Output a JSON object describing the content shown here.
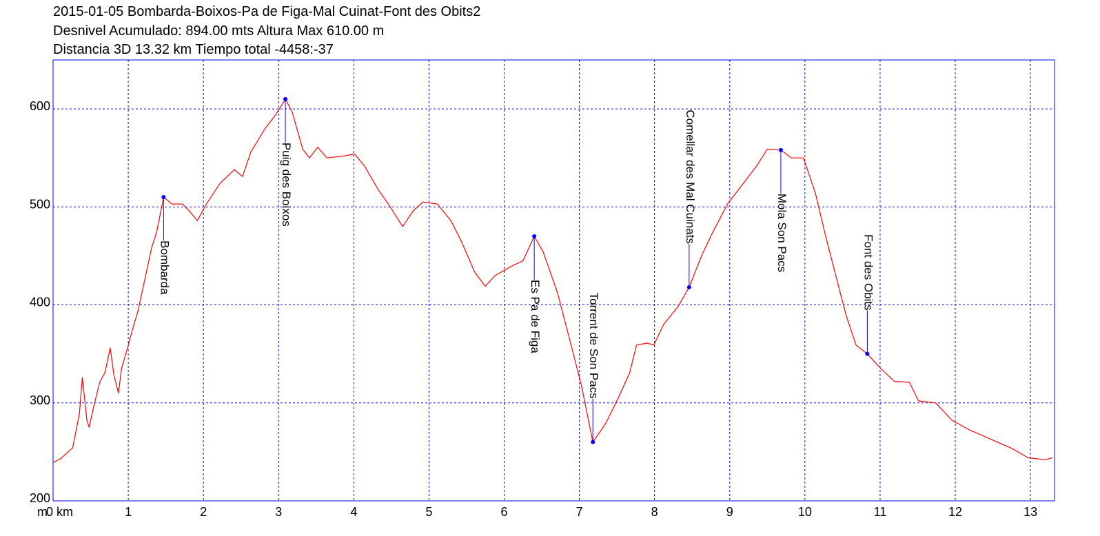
{
  "chart_data": {
    "type": "line",
    "title": [
      "2015-01-05 Bombarda-Boixos-Pa de Figa-Mal Cuinat-Font des Obits2",
      "Desnivel Acumulado: 894.00 mts  Altura Max 610.00 m",
      "Distancia 3D 13.32 km  Tiempo total -4458:-37"
    ],
    "y_label": "m",
    "xlim": [
      0,
      13.32
    ],
    "ylim": [
      200,
      650
    ],
    "xticks": [
      {
        "value": 0,
        "label": "0 km"
      },
      1,
      2,
      3,
      4,
      5,
      6,
      7,
      8,
      9,
      10,
      11,
      12,
      13
    ],
    "yticks": [
      200,
      300,
      400,
      500,
      600
    ],
    "grid": true,
    "series": [
      {
        "name": "Altura",
        "color": "#ff0000",
        "x": [
          0,
          0.1,
          0.2,
          0.26,
          0.35,
          0.39,
          0.45,
          0.48,
          0.54,
          0.62,
          0.69,
          0.76,
          0.81,
          0.87,
          0.91,
          0.99,
          1.05,
          1.13,
          1.22,
          1.31,
          1.38,
          1.47,
          1.58,
          1.72,
          1.81,
          1.92,
          2.04,
          2.22,
          2.41,
          2.52,
          2.63,
          2.82,
          2.96,
          3.09,
          3.18,
          3.32,
          3.41,
          3.52,
          3.64,
          3.87,
          4.01,
          4.14,
          4.33,
          4.46,
          4.65,
          4.79,
          4.92,
          5.11,
          5.29,
          5.43,
          5.61,
          5.75,
          5.88,
          6.11,
          6.25,
          6.4,
          6.52,
          6.71,
          6.89,
          7.03,
          7.18,
          7.35,
          7.53,
          7.67,
          7.76,
          7.9,
          7.99,
          8.12,
          8.31,
          8.46,
          8.63,
          8.76,
          8.97,
          9.18,
          9.36,
          9.5,
          9.68,
          9.82,
          9.98,
          10.14,
          10.27,
          10.41,
          10.55,
          10.68,
          10.83,
          11.01,
          11.19,
          11.39,
          11.51,
          11.74,
          11.96,
          12.2,
          12.47,
          12.74,
          12.97,
          13.2,
          13.29
        ],
        "values": [
          239,
          243,
          250,
          254,
          289,
          326,
          282,
          275,
          296,
          321,
          331,
          356,
          328,
          310,
          335,
          356,
          373,
          394,
          426,
          458,
          475,
          510,
          503,
          503,
          496,
          486,
          503,
          524,
          538,
          531,
          556,
          580,
          594,
          610,
          597,
          559,
          550,
          561,
          550,
          552,
          554,
          542,
          517,
          503,
          480,
          496,
          505,
          503,
          486,
          465,
          433,
          419,
          430,
          440,
          445,
          470,
          454,
          412,
          359,
          317,
          260,
          279,
          307,
          331,
          359,
          361,
          359,
          380,
          398,
          418,
          451,
          472,
          503,
          524,
          542,
          559,
          558,
          550,
          550,
          514,
          472,
          430,
          389,
          359,
          350,
          335,
          322,
          321,
          302,
          300,
          282,
          272,
          263,
          254,
          244,
          242,
          244
        ]
      }
    ],
    "waypoints": [
      {
        "name": "Bombarda",
        "x": 1.47,
        "y": 510
      },
      {
        "name": "Puig des Boixos",
        "x": 3.09,
        "y": 610
      },
      {
        "name": "Es Pa de Figa",
        "x": 6.4,
        "y": 470
      },
      {
        "name": "Torrent de Son Pacs",
        "x": 7.18,
        "y": 260
      },
      {
        "name": "Comellar des Mal Cuinats",
        "x": 8.46,
        "y": 418
      },
      {
        "name": "Mola Son Pacs",
        "x": 9.68,
        "y": 558
      },
      {
        "name": "Font des Obits",
        "x": 10.83,
        "y": 350
      }
    ]
  }
}
